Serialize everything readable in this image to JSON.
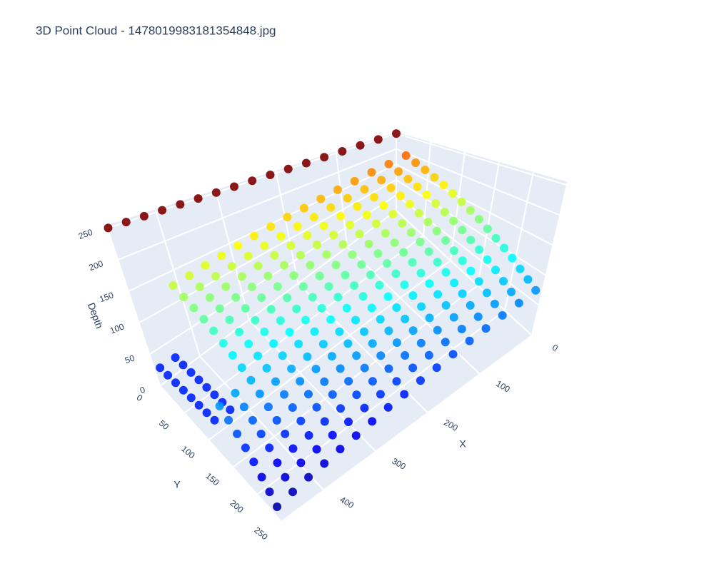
{
  "chart_data": {
    "type": "scatter3d",
    "title": "3D Point Cloud - 1478019983181354848.jpg",
    "x_label": "X",
    "y_label": "Y",
    "z_label": "Depth",
    "x": [
      0,
      30,
      60,
      90,
      120,
      150,
      180,
      210,
      240,
      270,
      300,
      330,
      360,
      390,
      420,
      450,
      480
    ],
    "y": [
      0,
      15,
      30,
      45,
      60,
      75,
      90,
      105,
      120,
      135,
      150,
      165,
      180,
      195,
      210,
      225,
      240
    ],
    "z": [
      [
        250,
        250,
        250,
        250,
        250,
        250,
        250,
        250,
        250,
        250,
        250,
        250,
        250,
        250,
        250,
        250,
        250
      ],
      [
        192,
        188,
        185,
        181,
        178,
        174,
        170,
        167,
        163,
        160,
        156,
        152,
        149,
        145,
        142,
        40,
        40
      ],
      [
        183,
        179,
        176,
        172,
        169,
        165,
        161,
        158,
        154,
        151,
        147,
        143,
        140,
        136,
        133,
        40,
        40
      ],
      [
        175,
        171,
        168,
        164,
        161,
        157,
        153,
        150,
        146,
        143,
        139,
        135,
        132,
        128,
        125,
        40,
        40
      ],
      [
        167,
        163,
        160,
        156,
        153,
        149,
        145,
        142,
        138,
        135,
        131,
        127,
        124,
        120,
        117,
        40,
        40
      ],
      [
        159,
        155,
        152,
        148,
        145,
        141,
        137,
        134,
        130,
        127,
        123,
        119,
        116,
        112,
        109,
        40,
        40
      ],
      [
        150,
        146,
        143,
        139,
        136,
        132,
        128,
        125,
        121,
        118,
        114,
        110,
        107,
        103,
        100,
        40,
        40
      ],
      [
        142,
        138,
        135,
        131,
        128,
        124,
        120,
        117,
        113,
        110,
        106,
        102,
        99,
        95,
        92,
        40,
        40
      ],
      [
        134,
        130,
        127,
        123,
        120,
        116,
        112,
        109,
        105,
        102,
        98,
        94,
        91,
        87,
        84,
        40,
        40
      ],
      [
        126,
        122,
        119,
        115,
        112,
        108,
        104,
        101,
        97,
        94,
        90,
        86,
        83,
        79,
        76,
        72,
        68
      ],
      [
        117,
        113,
        110,
        106,
        103,
        99,
        95,
        92,
        88,
        85,
        81,
        77,
        74,
        70,
        67,
        63,
        59
      ],
      [
        109,
        105,
        102,
        98,
        95,
        91,
        87,
        84,
        80,
        77,
        73,
        69,
        66,
        62,
        59,
        55,
        51
      ],
      [
        101,
        97,
        94,
        90,
        87,
        83,
        79,
        76,
        72,
        69,
        65,
        61,
        58,
        54,
        51,
        47,
        43
      ],
      [
        93,
        89,
        86,
        82,
        79,
        75,
        71,
        68,
        64,
        61,
        57,
        53,
        50,
        46,
        43,
        39,
        35
      ],
      [
        84,
        80,
        77,
        73,
        70,
        66,
        62,
        59,
        55,
        52,
        48,
        44,
        41,
        37,
        34,
        30,
        26
      ],
      [
        76,
        72,
        69,
        65,
        62,
        58,
        54,
        51,
        47,
        44,
        40,
        36,
        33,
        29,
        26,
        22,
        18
      ],
      [
        68,
        64,
        61,
        57,
        54,
        50,
        46,
        43,
        39,
        36,
        32,
        28,
        25,
        21,
        18,
        14,
        10
      ]
    ],
    "colorscale": "Jet",
    "clim": [
      0,
      250
    ],
    "xlim": [
      0,
      480
    ],
    "ylim": [
      0,
      250
    ],
    "zlim": [
      0,
      255
    ],
    "xticks": [
      0,
      100,
      200,
      300,
      400
    ],
    "yticks": [
      0,
      50,
      100,
      150,
      200,
      250
    ],
    "zticks": [
      0,
      50,
      100,
      150,
      200,
      250
    ]
  }
}
